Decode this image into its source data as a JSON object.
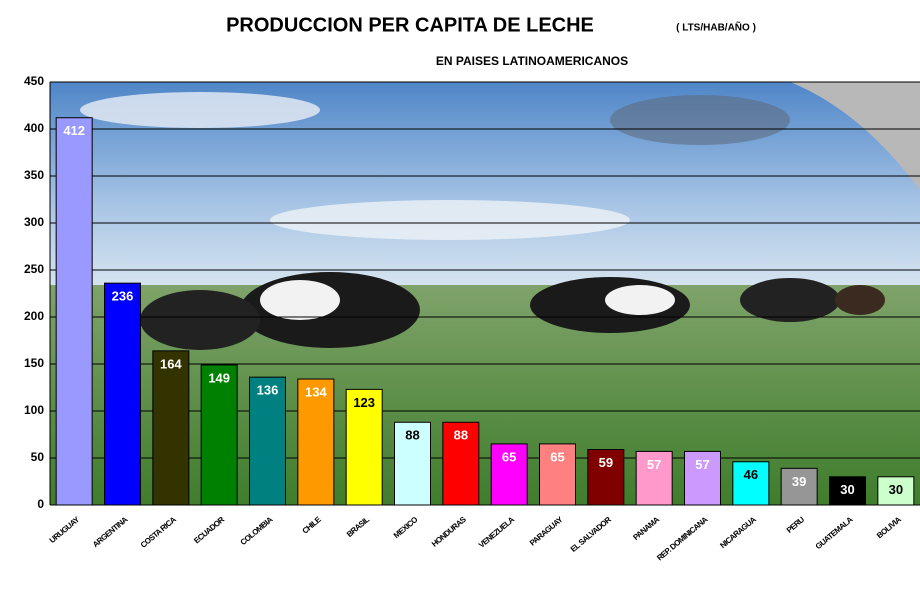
{
  "chart_data": {
    "type": "bar",
    "title": "PRODUCCION PER CAPITA DE LECHE",
    "unit": "( LTS/HAB/AÑO )",
    "subtitle": "EN PAISES LATINOAMERICANOS",
    "categories": [
      "URUGUAY",
      "ARGENTINA",
      "COSTA RICA",
      "ECUADOR",
      "COLOMBIA",
      "CHILE",
      "BRASIL",
      "MEXICO",
      "HONDURAS",
      "VENEZUELA",
      "PARAGUAY",
      "EL SALVADOR",
      "PANAMA",
      "REP. DOMINICANA",
      "NICARAGUA",
      "PERU",
      "GUATEMALA",
      "BOLIVIA"
    ],
    "values": [
      412,
      236,
      164,
      149,
      136,
      134,
      123,
      88,
      88,
      65,
      65,
      59,
      57,
      57,
      46,
      39,
      30,
      30
    ],
    "colors": [
      "#9999ff",
      "#0000ff",
      "#333300",
      "#008000",
      "#008080",
      "#ff9900",
      "#ffff00",
      "#ccffff",
      "#ff0000",
      "#ff00ff",
      "#ff8080",
      "#800000",
      "#ff99cc",
      "#cc99ff",
      "#00ffff",
      "#969696",
      "#000000",
      "#ccffcc"
    ],
    "value_label_colors": [
      "#ffffff",
      "#ffffff",
      "#ffffff",
      "#ffffff",
      "#ffffff",
      "#ffffff",
      "#000000",
      "#000000",
      "#ffffff",
      "#ffffff",
      "#ffffff",
      "#ffffff",
      "#ffffff",
      "#ffffff",
      "#000000",
      "#ffffff",
      "#ffffff",
      "#000000"
    ],
    "ylim": [
      0,
      450
    ],
    "yticks": [
      0,
      50,
      100,
      150,
      200,
      250,
      300,
      350,
      400,
      450
    ],
    "grid": true
  }
}
